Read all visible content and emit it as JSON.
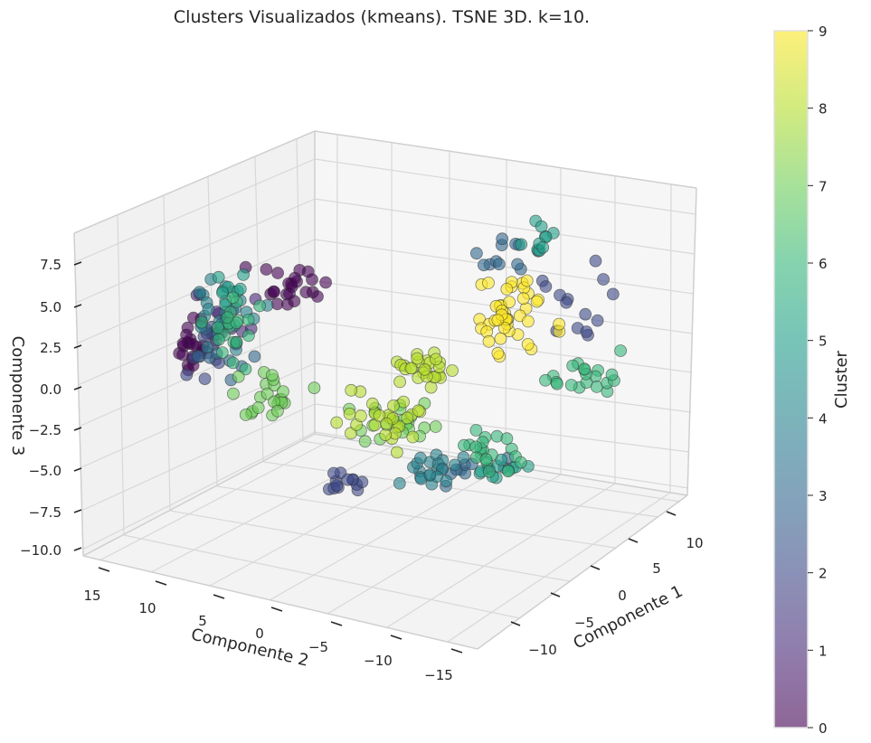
{
  "chart_data": {
    "type": "scatter",
    "title": "Clusters Visualizados (kmeans). TSNE 3D. k=10.",
    "xlabel": "Componente 1",
    "ylabel": "Componente 2",
    "zlabel": "Componente 3",
    "colorbar_label": "Cluster",
    "x_ticks": [
      "−10",
      "−5",
      "0",
      "5",
      "10"
    ],
    "y_ticks": [
      "−15",
      "−10",
      "−5",
      "0",
      "5",
      "10",
      "15"
    ],
    "z_ticks": [
      "−10.0",
      "−7.5",
      "−5.0",
      "−2.5",
      "0.0",
      "2.5",
      "5.0",
      "7.5"
    ],
    "colorbar_ticks": [
      "0",
      "1",
      "2",
      "3",
      "4",
      "5",
      "6",
      "7",
      "8",
      "9"
    ],
    "colormap": "viridis",
    "clim": [
      0,
      9
    ],
    "grid": true,
    "projection": "3d",
    "marker_alpha": 0.6,
    "marker_edge_color": "#333333",
    "note_points_encoding": "points are [projected screen position is layout; cluster value is data]",
    "clusters": [
      {
        "cluster": 0,
        "count": 45
      },
      {
        "cluster": 1,
        "count": 15
      },
      {
        "cluster": 2,
        "count": 40
      },
      {
        "cluster": 3,
        "count": 35
      },
      {
        "cluster": 4,
        "count": 40
      },
      {
        "cluster": 5,
        "count": 30
      },
      {
        "cluster": 6,
        "count": 60
      },
      {
        "cluster": 7,
        "count": 45
      },
      {
        "cluster": 8,
        "count": 55
      },
      {
        "cluster": 9,
        "count": 45
      }
    ]
  }
}
